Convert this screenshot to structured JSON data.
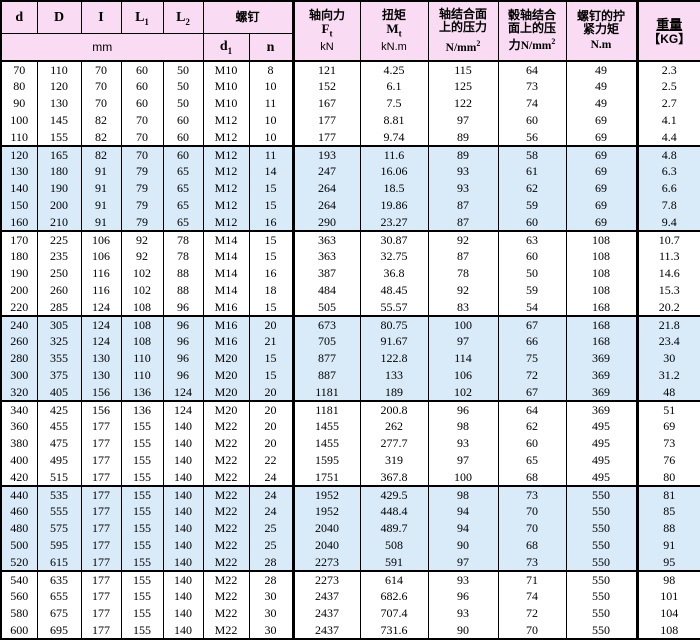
{
  "colors": {
    "header_bg": "#f9dcf4",
    "band_blue": "#d9eaf8",
    "band_white": "#ffffff",
    "border": "#000000"
  },
  "table": {
    "header": {
      "dims": [
        {
          "main": "d",
          "sub": ""
        },
        {
          "main": "D",
          "sub": ""
        },
        {
          "main": "I",
          "sub": ""
        },
        {
          "main": "L",
          "sub": "1"
        },
        {
          "main": "L",
          "sub": "2"
        }
      ],
      "dims_unit": "mm",
      "screw": {
        "group_label": "螺钉",
        "d": {
          "main": "d",
          "sub": "1"
        },
        "n": "n"
      },
      "axial": {
        "zh": "轴向力",
        "sym": "F",
        "sym_sub": "t",
        "unit": "kN"
      },
      "torque": {
        "zh": "扭矩",
        "sym": "M",
        "sym_sub": "t",
        "unit": "kN.m"
      },
      "shaft_pressure": {
        "zh_line1": "轴结合面",
        "zh_line2": "上的压力",
        "unit_main": "N/mm",
        "unit_sup": "2"
      },
      "hub_pressure": {
        "zh_line1": "毂轴结合",
        "zh_line2": "面上的压",
        "zh_line3": "力",
        "unit_main": "N/mm",
        "unit_sup": "2"
      },
      "tightening": {
        "zh_line1": "螺钉的拧",
        "zh_line2": "紧力矩",
        "unit": "N.m"
      },
      "weight": {
        "zh": "重量",
        "unit": "【KG】"
      }
    },
    "rows": [
      {
        "band": "white",
        "group_start": false,
        "cells": [
          "70",
          "110",
          "70",
          "60",
          "50",
          "M10",
          "8",
          "121",
          "4.25",
          "115",
          "64",
          "49",
          "2.3"
        ]
      },
      {
        "band": "white",
        "group_start": false,
        "cells": [
          "80",
          "120",
          "70",
          "60",
          "50",
          "M10",
          "10",
          "152",
          "6.1",
          "125",
          "73",
          "49",
          "2.5"
        ]
      },
      {
        "band": "white",
        "group_start": false,
        "cells": [
          "90",
          "130",
          "70",
          "60",
          "50",
          "M10",
          "11",
          "167",
          "7.5",
          "122",
          "74",
          "49",
          "2.7"
        ]
      },
      {
        "band": "white",
        "group_start": false,
        "cells": [
          "100",
          "145",
          "82",
          "70",
          "60",
          "M12",
          "10",
          "177",
          "8.81",
          "97",
          "60",
          "69",
          "4.1"
        ]
      },
      {
        "band": "white",
        "group_start": false,
        "cells": [
          "110",
          "155",
          "82",
          "70",
          "60",
          "M12",
          "10",
          "177",
          "9.74",
          "89",
          "56",
          "69",
          "4.4"
        ]
      },
      {
        "band": "blue",
        "group_start": true,
        "cells": [
          "120",
          "165",
          "82",
          "70",
          "60",
          "M12",
          "11",
          "193",
          "11.6",
          "89",
          "58",
          "69",
          "4.8"
        ]
      },
      {
        "band": "blue",
        "group_start": false,
        "cells": [
          "130",
          "180",
          "91",
          "79",
          "65",
          "M12",
          "14",
          "247",
          "16.06",
          "93",
          "61",
          "69",
          "6.3"
        ]
      },
      {
        "band": "blue",
        "group_start": false,
        "cells": [
          "140",
          "190",
          "91",
          "79",
          "65",
          "M12",
          "15",
          "264",
          "18.5",
          "93",
          "62",
          "69",
          "6.6"
        ]
      },
      {
        "band": "blue",
        "group_start": false,
        "cells": [
          "150",
          "200",
          "91",
          "79",
          "65",
          "M12",
          "15",
          "264",
          "19.86",
          "87",
          "59",
          "69",
          "7.8"
        ]
      },
      {
        "band": "blue",
        "group_start": false,
        "cells": [
          "160",
          "210",
          "91",
          "79",
          "65",
          "M12",
          "16",
          "290",
          "23.27",
          "87",
          "60",
          "69",
          "9.4"
        ]
      },
      {
        "band": "white",
        "group_start": true,
        "cells": [
          "170",
          "225",
          "106",
          "92",
          "78",
          "M14",
          "15",
          "363",
          "30.87",
          "92",
          "63",
          "108",
          "10.7"
        ]
      },
      {
        "band": "white",
        "group_start": false,
        "cells": [
          "180",
          "235",
          "106",
          "92",
          "78",
          "M14",
          "15",
          "363",
          "32.75",
          "87",
          "60",
          "108",
          "11.3"
        ]
      },
      {
        "band": "white",
        "group_start": false,
        "cells": [
          "190",
          "250",
          "116",
          "102",
          "88",
          "M14",
          "16",
          "387",
          "36.8",
          "78",
          "50",
          "108",
          "14.6"
        ]
      },
      {
        "band": "white",
        "group_start": false,
        "cells": [
          "200",
          "260",
          "116",
          "102",
          "88",
          "M14",
          "18",
          "484",
          "48.45",
          "92",
          "59",
          "108",
          "15.3"
        ]
      },
      {
        "band": "white",
        "group_start": false,
        "cells": [
          "220",
          "285",
          "124",
          "108",
          "96",
          "M16",
          "15",
          "505",
          "55.57",
          "83",
          "54",
          "168",
          "20.2"
        ]
      },
      {
        "band": "blue",
        "group_start": true,
        "cells": [
          "240",
          "305",
          "124",
          "108",
          "96",
          "M16",
          "20",
          "673",
          "80.75",
          "100",
          "67",
          "168",
          "21.8"
        ]
      },
      {
        "band": "blue",
        "group_start": false,
        "cells": [
          "260",
          "325",
          "124",
          "108",
          "96",
          "M16",
          "21",
          "705",
          "91.67",
          "97",
          "66",
          "168",
          "23.4"
        ]
      },
      {
        "band": "blue",
        "group_start": false,
        "cells": [
          "280",
          "355",
          "130",
          "110",
          "96",
          "M20",
          "15",
          "877",
          "122.8",
          "114",
          "75",
          "369",
          "30"
        ]
      },
      {
        "band": "blue",
        "group_start": false,
        "cells": [
          "300",
          "375",
          "130",
          "110",
          "96",
          "M20",
          "15",
          "887",
          "133",
          "106",
          "72",
          "369",
          "31.2"
        ]
      },
      {
        "band": "blue",
        "group_start": false,
        "cells": [
          "320",
          "405",
          "156",
          "136",
          "124",
          "M20",
          "20",
          "1181",
          "189",
          "102",
          "67",
          "369",
          "48"
        ]
      },
      {
        "band": "white",
        "group_start": true,
        "cells": [
          "340",
          "425",
          "156",
          "136",
          "124",
          "M20",
          "20",
          "1181",
          "200.8",
          "96",
          "64",
          "369",
          "51"
        ]
      },
      {
        "band": "white",
        "group_start": false,
        "cells": [
          "360",
          "455",
          "177",
          "155",
          "140",
          "M22",
          "20",
          "1455",
          "262",
          "98",
          "62",
          "495",
          "69"
        ]
      },
      {
        "band": "white",
        "group_start": false,
        "cells": [
          "380",
          "475",
          "177",
          "155",
          "140",
          "M22",
          "20",
          "1455",
          "277.7",
          "93",
          "60",
          "495",
          "73"
        ]
      },
      {
        "band": "white",
        "group_start": false,
        "cells": [
          "400",
          "495",
          "177",
          "155",
          "140",
          "M22",
          "22",
          "1595",
          "319",
          "97",
          "65",
          "495",
          "76"
        ]
      },
      {
        "band": "white",
        "group_start": false,
        "cells": [
          "420",
          "515",
          "177",
          "155",
          "140",
          "M22",
          "24",
          "1751",
          "367.8",
          "100",
          "68",
          "495",
          "80"
        ]
      },
      {
        "band": "blue",
        "group_start": true,
        "cells": [
          "440",
          "535",
          "177",
          "155",
          "140",
          "M22",
          "24",
          "1952",
          "429.5",
          "98",
          "73",
          "550",
          "81"
        ]
      },
      {
        "band": "blue",
        "group_start": false,
        "cells": [
          "460",
          "555",
          "177",
          "155",
          "140",
          "M22",
          "24",
          "1952",
          "448.4",
          "94",
          "70",
          "550",
          "85"
        ]
      },
      {
        "band": "blue",
        "group_start": false,
        "cells": [
          "480",
          "575",
          "177",
          "155",
          "140",
          "M22",
          "25",
          "2040",
          "489.7",
          "94",
          "70",
          "550",
          "88"
        ]
      },
      {
        "band": "blue",
        "group_start": false,
        "cells": [
          "500",
          "595",
          "177",
          "155",
          "140",
          "M22",
          "25",
          "2040",
          "508",
          "90",
          "68",
          "550",
          "91"
        ]
      },
      {
        "band": "blue",
        "group_start": false,
        "cells": [
          "520",
          "615",
          "177",
          "155",
          "140",
          "M22",
          "28",
          "2273",
          "591",
          "97",
          "73",
          "550",
          "95"
        ]
      },
      {
        "band": "white",
        "group_start": true,
        "cells": [
          "540",
          "635",
          "177",
          "155",
          "140",
          "M22",
          "28",
          "2273",
          "614",
          "93",
          "71",
          "550",
          "98"
        ]
      },
      {
        "band": "white",
        "group_start": false,
        "cells": [
          "560",
          "655",
          "177",
          "155",
          "140",
          "M22",
          "30",
          "2437",
          "682.6",
          "96",
          "74",
          "550",
          "101"
        ]
      },
      {
        "band": "white",
        "group_start": false,
        "cells": [
          "580",
          "675",
          "177",
          "155",
          "140",
          "M22",
          "30",
          "2437",
          "707.4",
          "93",
          "72",
          "550",
          "104"
        ]
      },
      {
        "band": "white",
        "group_start": false,
        "cells": [
          "600",
          "695",
          "177",
          "155",
          "140",
          "M22",
          "30",
          "2437",
          "731.6",
          "90",
          "70",
          "550",
          "108"
        ]
      }
    ]
  }
}
